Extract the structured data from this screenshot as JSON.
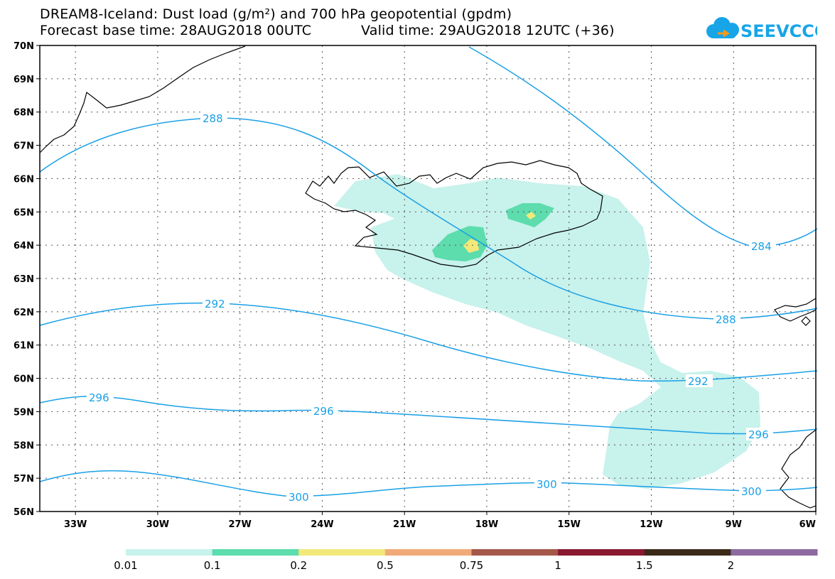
{
  "title_line1": "DREAM8-Iceland: Dust load (g/m²) and 700 hPa geopotential (gpdm)",
  "title_line2": "Forecast base time: 28AUG2018 00UTC",
  "valid_time": "Valid time: 29AUG2018 12UTC (+36)",
  "logo_text": "SEEVCCC",
  "map": {
    "lon_range": [
      -34.3,
      -6
    ],
    "lat_range": [
      56,
      70
    ],
    "lat_labels": [
      "70N",
      "69N",
      "68N",
      "67N",
      "66N",
      "65N",
      "64N",
      "63N",
      "62N",
      "61N",
      "60N",
      "59N",
      "58N",
      "57N",
      "56N"
    ],
    "lon_labels": [
      "33W",
      "30W",
      "27W",
      "24W",
      "21W",
      "18W",
      "15W",
      "12W",
      "9W",
      "6W"
    ],
    "contour_labels": [
      "288",
      "284",
      "288",
      "292",
      "292",
      "296",
      "296",
      "296",
      "300",
      "300",
      "300"
    ]
  },
  "colorbar": {
    "colors": [
      "#c8f2ec",
      "#5ddcad",
      "#f2e97a",
      "#f0aa78",
      "#a3584a",
      "#8a1830",
      "#3b2a1a",
      "#8c6aa0"
    ],
    "labels": [
      "0.01",
      "0.1",
      "0.2",
      "0.5",
      "0.75",
      "1",
      "1.5",
      "2"
    ]
  },
  "colors": {
    "contour": "#1aa0e6",
    "dust_low": "#c8f2ec",
    "dust_mid": "#5ddcad",
    "dust_high": "#f2e97a"
  }
}
